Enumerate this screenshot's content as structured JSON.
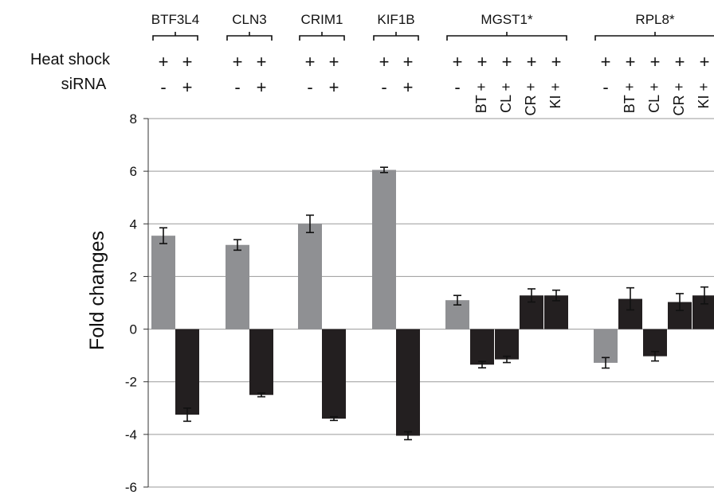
{
  "chart_data": {
    "type": "bar",
    "title": "",
    "xlabel": "",
    "ylabel": "Fold changes",
    "ylim": [
      -6,
      8
    ],
    "yticks": [
      -6,
      -4,
      -2,
      0,
      2,
      4,
      6,
      8
    ],
    "grid": true,
    "row_labels": {
      "heat_shock": "Heat shock",
      "sirna": "siRNA"
    },
    "groups": [
      {
        "gene": "BTF3L4",
        "bars": [
          {
            "heat_shock": "+",
            "sirna": "-",
            "value": 3.55,
            "err": 0.3,
            "color": "gray"
          },
          {
            "heat_shock": "+",
            "sirna": "+",
            "value": -3.25,
            "err": 0.25,
            "color": "black"
          }
        ]
      },
      {
        "gene": "CLN3",
        "bars": [
          {
            "heat_shock": "+",
            "sirna": "-",
            "value": 3.2,
            "err": 0.2,
            "color": "gray"
          },
          {
            "heat_shock": "+",
            "sirna": "+",
            "value": -2.5,
            "err": 0.07,
            "color": "black"
          }
        ]
      },
      {
        "gene": "CRIM1",
        "bars": [
          {
            "heat_shock": "+",
            "sirna": "-",
            "value": 4.0,
            "err": 0.33,
            "color": "gray"
          },
          {
            "heat_shock": "+",
            "sirna": "+",
            "value": -3.4,
            "err": 0.07,
            "color": "black"
          }
        ]
      },
      {
        "gene": "KIF1B",
        "bars": [
          {
            "heat_shock": "+",
            "sirna": "-",
            "value": 6.05,
            "err": 0.1,
            "color": "gray"
          },
          {
            "heat_shock": "+",
            "sirna": "+",
            "value": -4.05,
            "err": 0.15,
            "color": "black"
          }
        ]
      },
      {
        "gene": "MGST1*",
        "bars": [
          {
            "heat_shock": "+",
            "sirna": "-",
            "value": 1.1,
            "err": 0.18,
            "color": "gray"
          },
          {
            "heat_shock": "+",
            "sirna": "BT +",
            "value": -1.35,
            "err": 0.12,
            "color": "black"
          },
          {
            "heat_shock": "+",
            "sirna": "CL +",
            "value": -1.15,
            "err": 0.12,
            "color": "black"
          },
          {
            "heat_shock": "+",
            "sirna": "CR +",
            "value": 1.28,
            "err": 0.25,
            "color": "black"
          },
          {
            "heat_shock": "+",
            "sirna": "KI +",
            "value": 1.28,
            "err": 0.2,
            "color": "black"
          }
        ]
      },
      {
        "gene": "RPL8*",
        "bars": [
          {
            "heat_shock": "+",
            "sirna": "-",
            "value": -1.28,
            "err": 0.2,
            "color": "gray"
          },
          {
            "heat_shock": "+",
            "sirna": "BT +",
            "value": 1.15,
            "err": 0.42,
            "color": "black"
          },
          {
            "heat_shock": "+",
            "sirna": "CL +",
            "value": -1.03,
            "err": 0.18,
            "color": "black"
          },
          {
            "heat_shock": "+",
            "sirna": "CR +",
            "value": 1.03,
            "err": 0.32,
            "color": "black"
          },
          {
            "heat_shock": "+",
            "sirna": "KI +",
            "value": 1.28,
            "err": 0.32,
            "color": "black"
          }
        ]
      }
    ],
    "colors": {
      "gray": "#8f9093",
      "black": "#231f20",
      "grid": "#9a9a9a",
      "axis": "#333333"
    }
  }
}
